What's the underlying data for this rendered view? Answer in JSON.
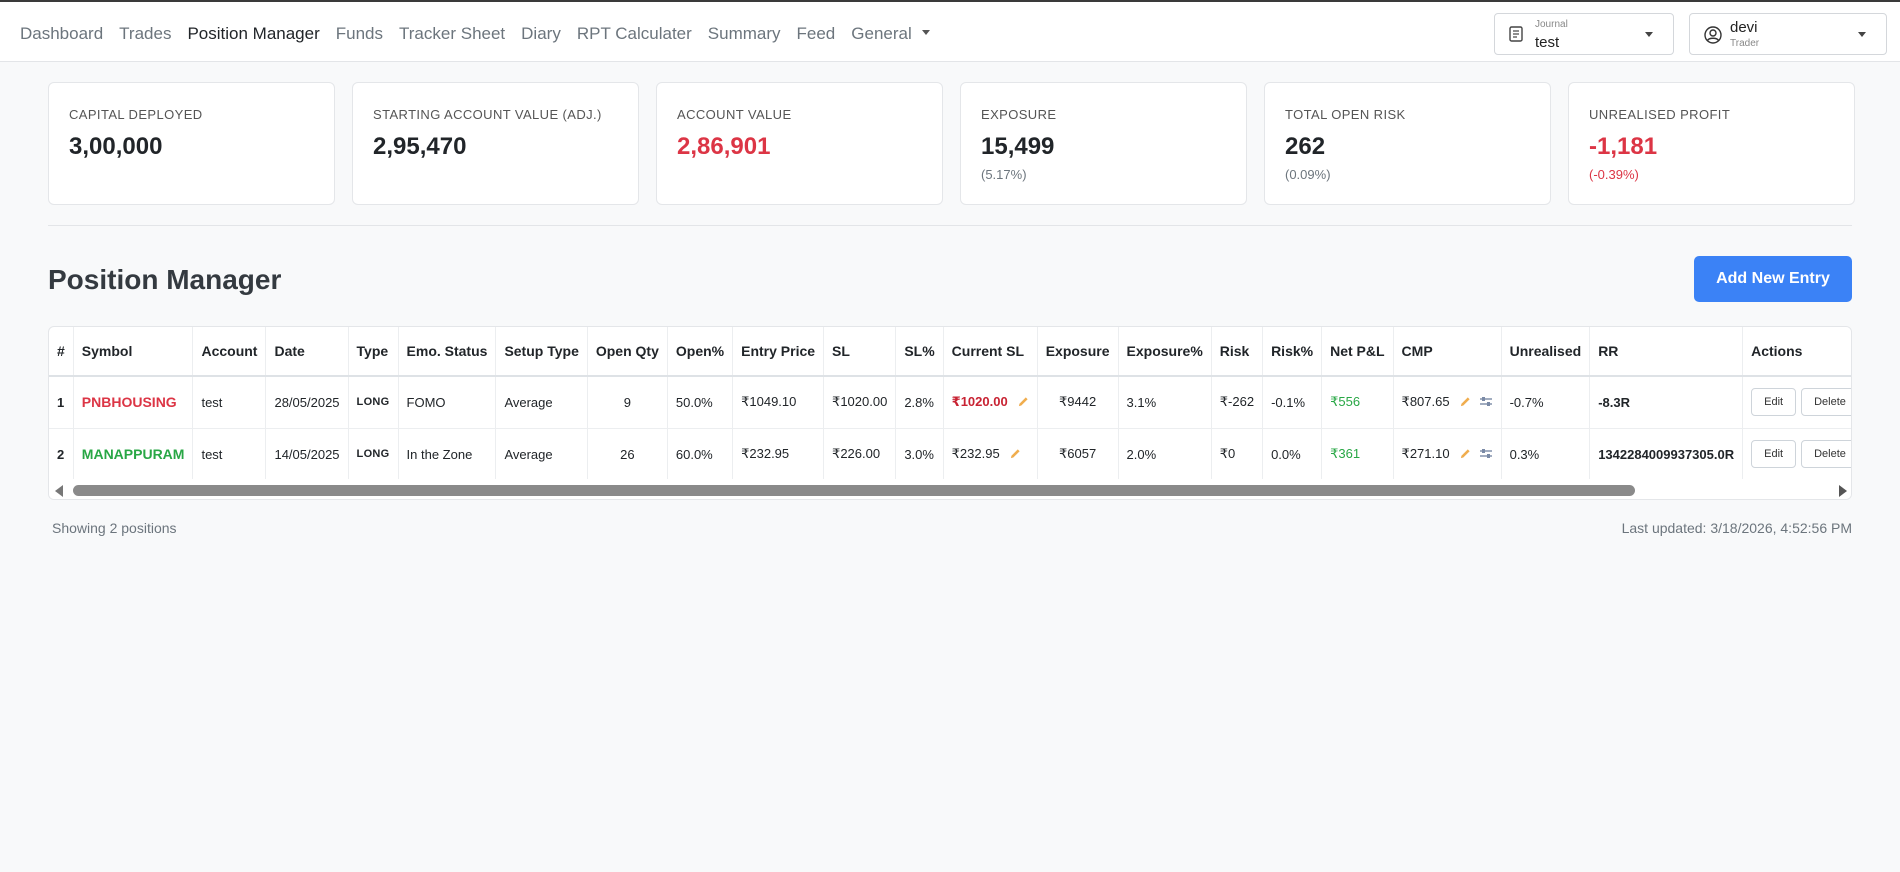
{
  "nav": {
    "items": [
      {
        "label": "Dashboard"
      },
      {
        "label": "Trades"
      },
      {
        "label": "Position Manager",
        "active": true
      },
      {
        "label": "Funds"
      },
      {
        "label": "Tracker Sheet"
      },
      {
        "label": "Diary"
      },
      {
        "label": "RPT Calculater"
      },
      {
        "label": "Summary"
      },
      {
        "label": "Feed"
      },
      {
        "label": "General"
      }
    ]
  },
  "journal": {
    "caption": "Journal",
    "value": "test"
  },
  "user": {
    "name": "devi",
    "role": "Trader"
  },
  "cards": [
    {
      "label": "CAPITAL DEPLOYED",
      "value": "3,00,000",
      "sub": ""
    },
    {
      "label": "STARTING ACCOUNT VALUE (ADJ.)",
      "value": "2,95,470",
      "sub": ""
    },
    {
      "label": "ACCOUNT VALUE",
      "value": "2,86,901",
      "sub": ""
    },
    {
      "label": "EXPOSURE",
      "value": "15,499",
      "sub": "(5.17%)"
    },
    {
      "label": "TOTAL OPEN RISK",
      "value": "262",
      "sub": "(0.09%)"
    },
    {
      "label": "UNREALISED PROFIT",
      "value": "-1,181",
      "sub": "(-0.39%)"
    }
  ],
  "page": {
    "title": "Position Manager",
    "add_button": "Add New Entry"
  },
  "table": {
    "headers": [
      "#",
      "Symbol",
      "Account",
      "Date",
      "Type",
      "Emo. Status",
      "Setup Type",
      "Open Qty",
      "Open%",
      "Entry Price",
      "SL",
      "SL%",
      "Current SL",
      "Exposure",
      "Exposure%",
      "Risk",
      "Risk%",
      "Net P&L",
      "CMP",
      "Unrealised",
      "RR",
      "Actions"
    ],
    "rows": [
      {
        "num": "1",
        "symbol": "PNBHOUSING",
        "account": "test",
        "date": "28/05/2025",
        "type": "LONG",
        "emo": "FOMO",
        "setup": "Average",
        "qty": "9",
        "open_pct": "50.0%",
        "entry": "₹1049.10",
        "sl": "₹1020.00",
        "sl_pct": "2.8%",
        "current_sl": "₹1020.00",
        "exposure": "₹9442",
        "exposure_pct": "3.1%",
        "risk": "₹-262",
        "risk_pct": "-0.1%",
        "net_pl": "₹556",
        "cmp": "₹807.65",
        "unrealised": "-0.7%",
        "rr": "-8.3R"
      },
      {
        "num": "2",
        "symbol": "MANAPPURAM",
        "account": "test",
        "date": "14/05/2025",
        "type": "LONG",
        "emo": "In the Zone",
        "setup": "Average",
        "qty": "26",
        "open_pct": "60.0%",
        "entry": "₹232.95",
        "sl": "₹226.00",
        "sl_pct": "3.0%",
        "current_sl": "₹232.95",
        "exposure": "₹6057",
        "exposure_pct": "2.0%",
        "risk": "₹0",
        "risk_pct": "0.0%",
        "net_pl": "₹361",
        "cmp": "₹271.10",
        "unrealised": "0.3%",
        "rr": "1342284009937305.0R"
      }
    ],
    "edit_label": "Edit",
    "delete_label": "Delete"
  },
  "footer": {
    "count": "Showing 2 positions",
    "updated": "Last updated: 3/18/2026, 4:52:56 PM"
  },
  "colors": {
    "accent": "#3b82f6",
    "negative": "#dc3545",
    "positive": "#28a745"
  }
}
